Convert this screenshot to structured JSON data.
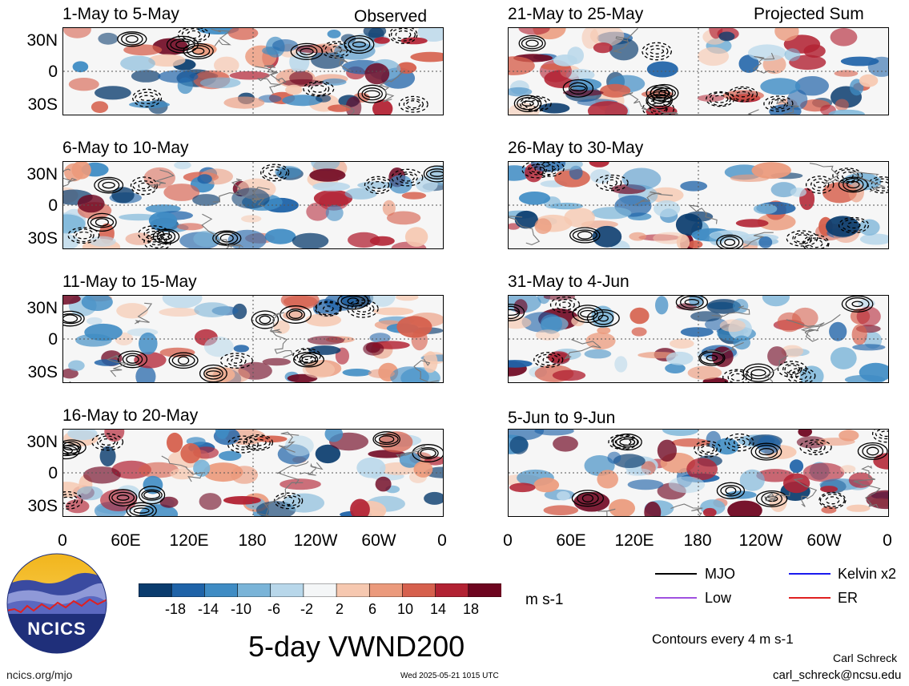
{
  "panels_left": [
    {
      "title": "1-May to 5-May",
      "corner": "Observed"
    },
    {
      "title": "6-May to 10-May",
      "corner": ""
    },
    {
      "title": "11-May to 15-May",
      "corner": ""
    },
    {
      "title": "16-May to 20-May",
      "corner": ""
    }
  ],
  "panels_right": [
    {
      "title": "21-May to 25-May",
      "corner": "Projected Sum"
    },
    {
      "title": "26-May to 30-May",
      "corner": ""
    },
    {
      "title": "31-May to 4-Jun",
      "corner": ""
    },
    {
      "title": "5-Jun to 9-Jun",
      "corner": ""
    }
  ],
  "lat_labels": [
    "30N",
    "0",
    "30S"
  ],
  "lon_labels": [
    "0",
    "60E",
    "120E",
    "180",
    "120W",
    "60W",
    "0"
  ],
  "colorbar": {
    "ticks": [
      "-18",
      "-14",
      "-10",
      "-6",
      "-2",
      "2",
      "6",
      "10",
      "14",
      "18"
    ],
    "units": "m s-1",
    "colors": [
      "#0a3c6e",
      "#1f63a8",
      "#3f8cc4",
      "#7ab4d8",
      "#b8d7ea",
      "#f4f6f7",
      "#f6c8b0",
      "#eb9a7c",
      "#d6604d",
      "#b22233",
      "#6e0520"
    ]
  },
  "logo": {
    "text": "NCICS",
    "url": "ncics.org/mjo"
  },
  "main_title": "5-day VWND200",
  "timestamp": "Wed 2025-05-21 1015 UTC",
  "legend": {
    "items": [
      {
        "label": "MJO",
        "color": "#000000"
      },
      {
        "label": "Kelvin x2",
        "color": "#1a1aee"
      },
      {
        "label": "Low",
        "color": "#a050e0"
      },
      {
        "label": "ER",
        "color": "#e02020"
      }
    ],
    "contours_note": "Contours every 4 m s-1"
  },
  "author": {
    "name": "Carl Schreck",
    "email": "carl_schreck@ncsu.edu"
  }
}
